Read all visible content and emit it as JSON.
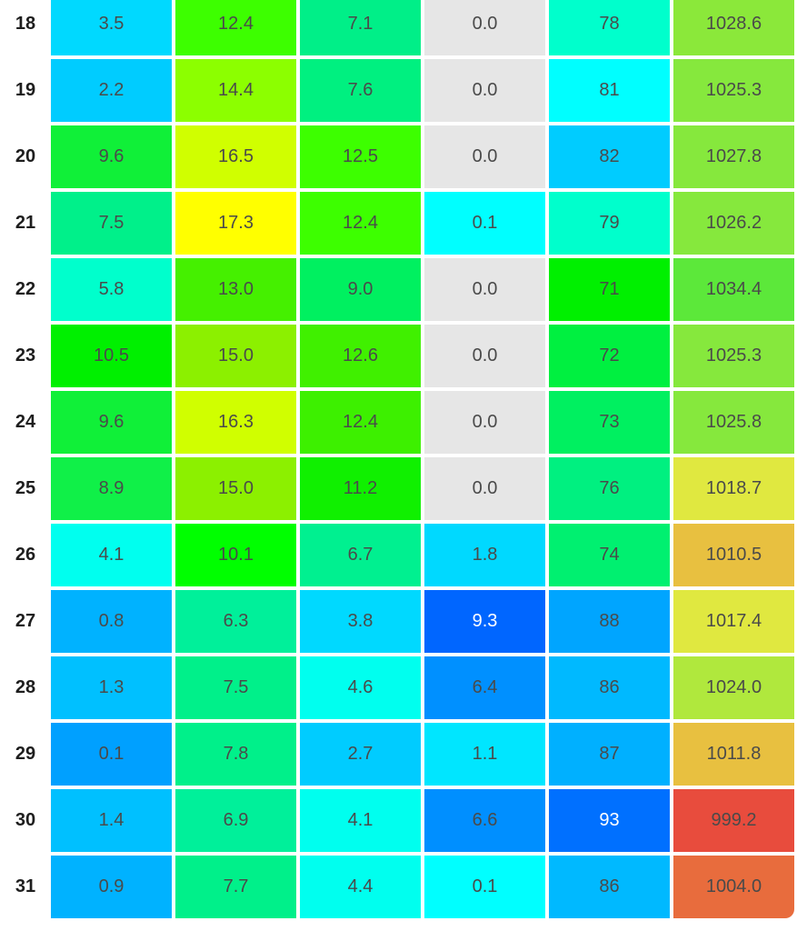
{
  "rows": [
    {
      "day": "18",
      "cells": [
        {
          "value": "3.5",
          "color": "#00d9ff"
        },
        {
          "value": "12.4",
          "color": "#3dff00"
        },
        {
          "value": "7.1",
          "color": "#00ef88"
        },
        {
          "value": "0.0",
          "color": "#e6e6e6"
        },
        {
          "value": "78",
          "color": "#00ffcc"
        },
        {
          "value": "1028.6",
          "color": "#8be83a"
        }
      ]
    },
    {
      "day": "19",
      "cells": [
        {
          "value": "2.2",
          "color": "#00ccff"
        },
        {
          "value": "14.4",
          "color": "#8cff00"
        },
        {
          "value": "7.6",
          "color": "#00f080"
        },
        {
          "value": "0.0",
          "color": "#e6e6e6"
        },
        {
          "value": "81",
          "color": "#00ffff"
        },
        {
          "value": "1025.3",
          "color": "#86e83d"
        }
      ]
    },
    {
      "day": "20",
      "cells": [
        {
          "value": "9.6",
          "color": "#10f038"
        },
        {
          "value": "16.5",
          "color": "#d0ff00"
        },
        {
          "value": "12.5",
          "color": "#3dff00"
        },
        {
          "value": "0.0",
          "color": "#e6e6e6"
        },
        {
          "value": "82",
          "color": "#00ccff"
        },
        {
          "value": "1027.8",
          "color": "#86e83d"
        }
      ]
    },
    {
      "day": "21",
      "cells": [
        {
          "value": "7.5",
          "color": "#00f08a"
        },
        {
          "value": "17.3",
          "color": "#ffff00"
        },
        {
          "value": "12.4",
          "color": "#3dff00"
        },
        {
          "value": "0.1",
          "color": "#00ffff"
        },
        {
          "value": "79",
          "color": "#00ffcc"
        },
        {
          "value": "1026.2",
          "color": "#86e83d"
        }
      ]
    },
    {
      "day": "22",
      "cells": [
        {
          "value": "5.8",
          "color": "#00ffcc"
        },
        {
          "value": "13.0",
          "color": "#45f000"
        },
        {
          "value": "9.0",
          "color": "#00f060"
        },
        {
          "value": "0.0",
          "color": "#e6e6e6"
        },
        {
          "value": "71",
          "color": "#00f000"
        },
        {
          "value": "1034.4",
          "color": "#5ce83a"
        }
      ]
    },
    {
      "day": "23",
      "cells": [
        {
          "value": "10.5",
          "color": "#00f000"
        },
        {
          "value": "15.0",
          "color": "#8cf000"
        },
        {
          "value": "12.6",
          "color": "#40f000"
        },
        {
          "value": "0.0",
          "color": "#e6e6e6"
        },
        {
          "value": "72",
          "color": "#00f040"
        },
        {
          "value": "1025.3",
          "color": "#86e83d"
        }
      ]
    },
    {
      "day": "24",
      "cells": [
        {
          "value": "9.6",
          "color": "#10f038"
        },
        {
          "value": "16.3",
          "color": "#d0ff00"
        },
        {
          "value": "12.4",
          "color": "#3df000"
        },
        {
          "value": "0.0",
          "color": "#e6e6e6"
        },
        {
          "value": "73",
          "color": "#00f060"
        },
        {
          "value": "1025.8",
          "color": "#86e83d"
        }
      ]
    },
    {
      "day": "25",
      "cells": [
        {
          "value": "8.9",
          "color": "#10f048"
        },
        {
          "value": "15.0",
          "color": "#8cf000"
        },
        {
          "value": "11.2",
          "color": "#10f000"
        },
        {
          "value": "0.0",
          "color": "#e6e6e6"
        },
        {
          "value": "76",
          "color": "#00f080"
        },
        {
          "value": "1018.7",
          "color": "#e0e840"
        }
      ]
    },
    {
      "day": "26",
      "cells": [
        {
          "value": "4.1",
          "color": "#00ffef"
        },
        {
          "value": "10.1",
          "color": "#00ff00"
        },
        {
          "value": "6.7",
          "color": "#00f090"
        },
        {
          "value": "1.8",
          "color": "#00d9ff"
        },
        {
          "value": "74",
          "color": "#00f070"
        },
        {
          "value": "1010.5",
          "color": "#e8c040"
        }
      ]
    },
    {
      "day": "27",
      "cells": [
        {
          "value": "0.8",
          "color": "#00b2ff"
        },
        {
          "value": "6.3",
          "color": "#00f09a"
        },
        {
          "value": "3.8",
          "color": "#00d9ff"
        },
        {
          "value": "9.3",
          "color": "#0066ff"
        },
        {
          "value": "88",
          "color": "#00a5ff"
        },
        {
          "value": "1017.4",
          "color": "#e0e840"
        }
      ]
    },
    {
      "day": "28",
      "cells": [
        {
          "value": "1.3",
          "color": "#00c0ff"
        },
        {
          "value": "7.5",
          "color": "#00f08a"
        },
        {
          "value": "4.6",
          "color": "#00ffef"
        },
        {
          "value": "6.4",
          "color": "#0090ff"
        },
        {
          "value": "86",
          "color": "#00b9ff"
        },
        {
          "value": "1024.0",
          "color": "#b0e83d"
        }
      ]
    },
    {
      "day": "29",
      "cells": [
        {
          "value": "0.1",
          "color": "#00a0ff"
        },
        {
          "value": "7.8",
          "color": "#00f08a"
        },
        {
          "value": "2.7",
          "color": "#00ccff"
        },
        {
          "value": "1.1",
          "color": "#00e6ff"
        },
        {
          "value": "87",
          "color": "#00b0ff"
        },
        {
          "value": "1011.8",
          "color": "#e8c040"
        }
      ]
    },
    {
      "day": "30",
      "cells": [
        {
          "value": "1.4",
          "color": "#00c0ff"
        },
        {
          "value": "6.9",
          "color": "#00f09a"
        },
        {
          "value": "4.1",
          "color": "#00ffef"
        },
        {
          "value": "6.6",
          "color": "#008fff"
        },
        {
          "value": "93",
          "color": "#0070ff"
        },
        {
          "value": "999.2",
          "color": "#e84c3d"
        }
      ]
    },
    {
      "day": "31",
      "cells": [
        {
          "value": "0.9",
          "color": "#00b2ff"
        },
        {
          "value": "7.7",
          "color": "#00f08a"
        },
        {
          "value": "4.4",
          "color": "#00ffef"
        },
        {
          "value": "0.1",
          "color": "#00ffff"
        },
        {
          "value": "86",
          "color": "#00b9ff"
        },
        {
          "value": "1004.0",
          "color": "#e86c3d"
        }
      ]
    }
  ],
  "text_colors": {
    "default": "#4a4a4a",
    "on_dark": "#ffffff"
  }
}
